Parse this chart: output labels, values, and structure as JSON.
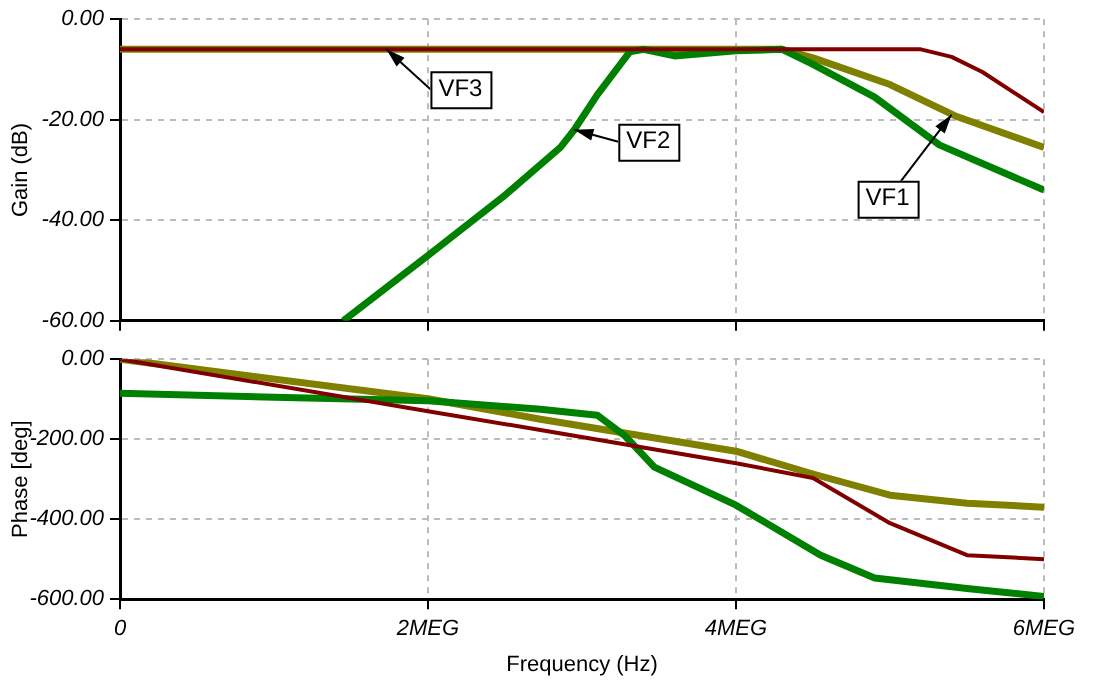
{
  "chart_data": [
    {
      "type": "line",
      "ylabel": "Gain (dB)",
      "xlim": [
        0,
        6
      ],
      "xticks": [
        {
          "value": 0,
          "label": null
        },
        {
          "value": 2,
          "label": null
        },
        {
          "value": 4,
          "label": null
        },
        {
          "value": 6,
          "label": null
        }
      ],
      "ylim": [
        -60,
        0
      ],
      "yticks": [
        {
          "value": -60,
          "label": "-60.00"
        },
        {
          "value": -40,
          "label": "-40.00"
        },
        {
          "value": -20,
          "label": "-20.00"
        },
        {
          "value": 0,
          "label": "0.00"
        }
      ],
      "grid": true,
      "tick_labels": "y",
      "line_style": "solid",
      "marker": "none",
      "series": [
        {
          "color": "#808000",
          "x": [
            0,
            3.3,
            4.3,
            4.5,
            5,
            5.42,
            6
          ],
          "values": [
            -6,
            -6,
            -6,
            -7.7,
            -13,
            -19.2,
            -25.5
          ]
        },
        {
          "color": "#008000",
          "x": [
            1.45,
            2,
            2.5,
            2.86,
            2.95,
            3.1,
            3.31,
            3.4,
            3.6,
            4,
            4.3,
            4.5,
            4.9,
            5.32,
            6
          ],
          "values": [
            -60,
            -47,
            -35,
            -25.5,
            -22,
            -15,
            -6.5,
            -6,
            -7.3,
            -6.3,
            -6,
            -9,
            -15.5,
            -25,
            -34
          ]
        },
        {
          "color": "#800000",
          "x": [
            0,
            5.2,
            5.4,
            5.6,
            5.8,
            6
          ],
          "values": [
            -6,
            -6,
            -7.5,
            -10.5,
            -14.5,
            -18.5
          ]
        }
      ],
      "annotations": [
        {
          "text": "VF1",
          "x": 5.4,
          "y": -19
        },
        {
          "text": "VF2",
          "x": 2.95,
          "y": -22
        },
        {
          "text": "VF3",
          "x": 1.73,
          "y": -6
        }
      ]
    },
    {
      "type": "line",
      "xlabel": "Frequency (Hz)",
      "ylabel": "Phase [deg]",
      "xlim": [
        0,
        6
      ],
      "xticks": [
        0,
        {
          "value": 2,
          "label": "2MEG"
        },
        {
          "value": 4,
          "label": "4MEG"
        },
        {
          "value": 6,
          "label": "6MEG"
        }
      ],
      "ylim": [
        -600,
        0
      ],
      "yticks": [
        {
          "value": -600,
          "label": "-600.00"
        },
        {
          "value": -400,
          "label": "-400.00"
        },
        {
          "value": -200,
          "label": "-200.00"
        },
        {
          "value": 0,
          "label": "0.00"
        }
      ],
      "grid": true,
      "line_style": "solid",
      "marker": "none",
      "series": [
        {
          "color": "#808000",
          "x": [
            0,
            2,
            2.73,
            4,
            4.5,
            5,
            5.5,
            6
          ],
          "values": [
            0,
            -99,
            -150,
            -230,
            -287,
            -340,
            -360,
            -370
          ]
        },
        {
          "color": "#008000",
          "x": [
            0,
            1,
            2,
            2.73,
            3.1,
            3.28,
            3.47,
            4,
            4.55,
            4.9,
            5.5,
            6
          ],
          "values": [
            -85,
            -95,
            -104,
            -125,
            -140,
            -192,
            -270,
            -365,
            -490,
            -547,
            -573,
            -593
          ]
        },
        {
          "color": "#800000",
          "x": [
            0,
            2,
            2.73,
            4,
            4.5,
            5,
            5.5,
            6
          ],
          "values": [
            0,
            -130,
            -177,
            -260,
            -297,
            -410,
            -490,
            -500
          ]
        }
      ]
    }
  ]
}
